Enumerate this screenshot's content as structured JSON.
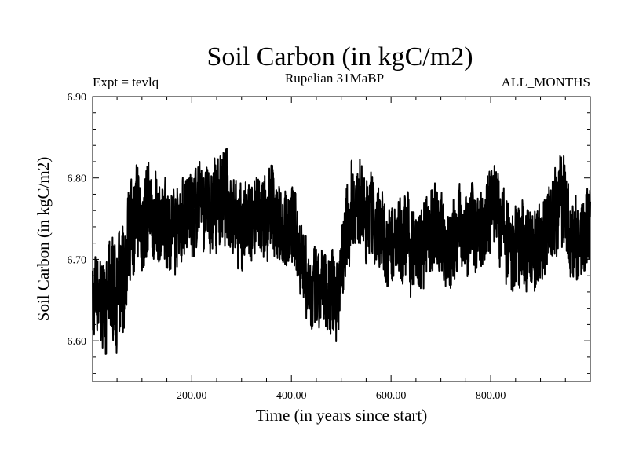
{
  "chart_data": {
    "type": "line",
    "title": "Soil Carbon (in kgC/m2)",
    "subtitle": "Rupelian  31MaBP",
    "left_note": "Expt = tevlq",
    "right_note": "ALL_MONTHS",
    "xlabel": "Time (in years since start)",
    "ylabel": "Soil Carbon (in kgC/m2)",
    "xlim": [
      1,
      1000
    ],
    "ylim": [
      6.55,
      6.9
    ],
    "x_ticks": [
      200,
      400,
      600,
      800
    ],
    "x_tick_labels": [
      "200.00",
      "400.00",
      "600.00",
      "800.00"
    ],
    "y_ticks": [
      6.6,
      6.7,
      6.8,
      6.9
    ],
    "y_tick_labels": [
      "6.60",
      "6.70",
      "6.80",
      "6.90"
    ],
    "line_color": "#000000",
    "series": [
      {
        "name": "Soil Carbon",
        "x": [
          1,
          20,
          40,
          60,
          70,
          80,
          90,
          100,
          120,
          140,
          160,
          180,
          200,
          220,
          240,
          260,
          280,
          300,
          320,
          340,
          360,
          380,
          400,
          420,
          440,
          460,
          480,
          500,
          520,
          540,
          560,
          580,
          600,
          620,
          640,
          660,
          680,
          700,
          720,
          740,
          760,
          780,
          800,
          820,
          840,
          860,
          880,
          900,
          920,
          940,
          960,
          980,
          1000
        ],
        "values": [
          6.65,
          6.64,
          6.66,
          6.66,
          6.69,
          6.74,
          6.75,
          6.74,
          6.75,
          6.74,
          6.75,
          6.75,
          6.76,
          6.77,
          6.75,
          6.78,
          6.77,
          6.74,
          6.74,
          6.75,
          6.76,
          6.74,
          6.74,
          6.71,
          6.66,
          6.65,
          6.66,
          6.69,
          6.75,
          6.76,
          6.76,
          6.73,
          6.71,
          6.74,
          6.71,
          6.7,
          6.74,
          6.73,
          6.71,
          6.74,
          6.73,
          6.75,
          6.78,
          6.74,
          6.71,
          6.72,
          6.71,
          6.72,
          6.75,
          6.78,
          6.73,
          6.72,
          6.74
        ],
        "noise_amplitude": [
          0.05,
          0.05,
          0.06,
          0.07,
          0.06,
          0.06,
          0.06,
          0.06,
          0.05,
          0.05,
          0.05,
          0.05,
          0.05,
          0.05,
          0.05,
          0.06,
          0.05,
          0.05,
          0.05,
          0.05,
          0.05,
          0.05,
          0.05,
          0.05,
          0.05,
          0.05,
          0.05,
          0.05,
          0.05,
          0.05,
          0.05,
          0.05,
          0.05,
          0.05,
          0.05,
          0.05,
          0.05,
          0.05,
          0.05,
          0.05,
          0.05,
          0.05,
          0.05,
          0.05,
          0.05,
          0.05,
          0.05,
          0.05,
          0.05,
          0.06,
          0.05,
          0.05,
          0.05
        ]
      }
    ]
  }
}
